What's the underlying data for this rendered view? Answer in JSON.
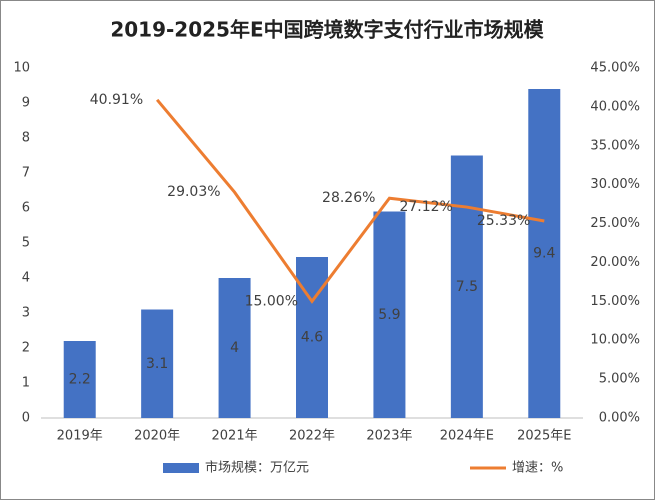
{
  "chart_data": {
    "type": "bar",
    "title": "2019-2025年E中国跨境数字支付行业市场规模",
    "categories": [
      "2019年",
      "2020年",
      "2021年",
      "2022年",
      "2023年",
      "2024年E",
      "2025年E"
    ],
    "series": [
      {
        "name": "市场规模：万亿元",
        "type": "bar",
        "color": "#4472c4",
        "axis": "y",
        "values": [
          2.2,
          3.1,
          4,
          4.6,
          5.9,
          7.5,
          9.4
        ]
      },
      {
        "name": "增速：%",
        "type": "line",
        "color": "#ed7d31",
        "axis": "y2",
        "values": [
          null,
          40.91,
          29.03,
          15.0,
          28.26,
          27.12,
          25.33
        ],
        "value_labels": [
          null,
          "40.91%",
          "29.03%",
          "15.00%",
          "28.26%",
          "27.12%",
          "25.33%"
        ]
      }
    ],
    "ylim": [
      0,
      10
    ],
    "yticks": [
      0,
      1,
      2,
      3,
      4,
      5,
      6,
      7,
      8,
      9,
      10
    ],
    "y2lim": [
      0,
      45
    ],
    "y2ticks": [
      {
        "value": 0,
        "label": "0.00%"
      },
      {
        "value": 5,
        "label": "5.00%"
      },
      {
        "value": 10,
        "label": "10.00%"
      },
      {
        "value": 15,
        "label": "15.00%"
      },
      {
        "value": 20,
        "label": "20.00%"
      },
      {
        "value": 25,
        "label": "25.00%"
      },
      {
        "value": 30,
        "label": "30.00%"
      },
      {
        "value": 35,
        "label": "35.00%"
      },
      {
        "value": 40,
        "label": "40.00%"
      },
      {
        "value": 45,
        "label": "45.00%"
      }
    ],
    "grid": false,
    "legend": "bottom"
  }
}
